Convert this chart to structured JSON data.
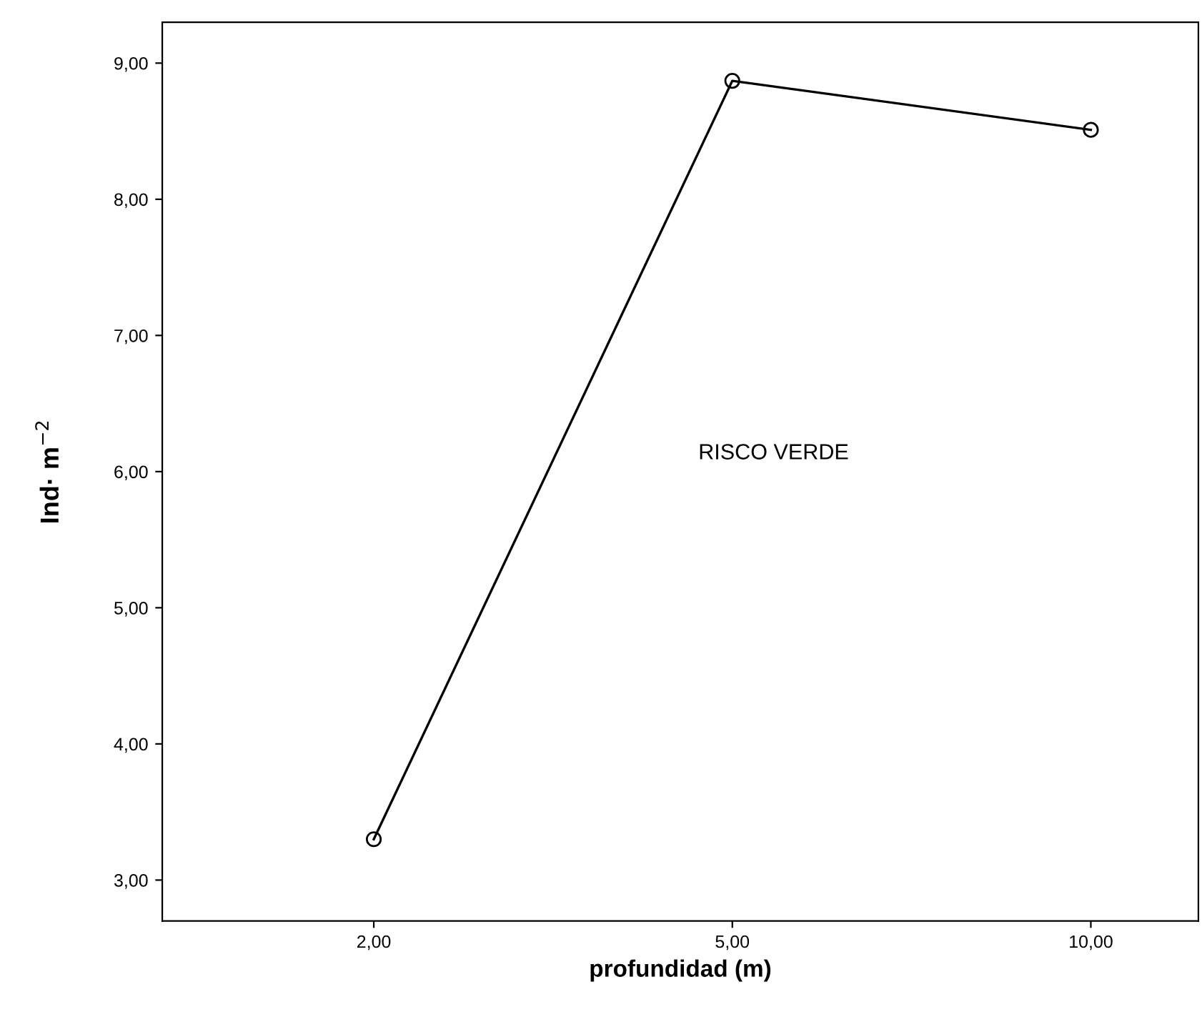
{
  "chart_data": {
    "type": "line",
    "xlabel": "profundidad (m)",
    "ylabel": "Ind· m$^{−2}$",
    "categories": [
      "2,00",
      "5,00",
      "10,00"
    ],
    "series": [
      {
        "color": "#000000",
        "values": [
          3.3,
          8.87,
          8.51
        ]
      }
    ],
    "ylim": [
      2.7,
      9.3
    ],
    "yticks": [
      {
        "value": 3,
        "label": "3,00"
      },
      {
        "value": 4,
        "label": "4,00"
      },
      {
        "value": 5,
        "label": "5,00"
      },
      {
        "value": 6,
        "label": "6,00"
      },
      {
        "value": 7,
        "label": "7,00"
      },
      {
        "value": 8,
        "label": "8,00"
      },
      {
        "value": 9,
        "label": "9,00"
      }
    ],
    "annotations": [
      "RISCO VERDE"
    ],
    "marker": "circle",
    "line_style": "solid",
    "grid": false,
    "legend": false
  }
}
